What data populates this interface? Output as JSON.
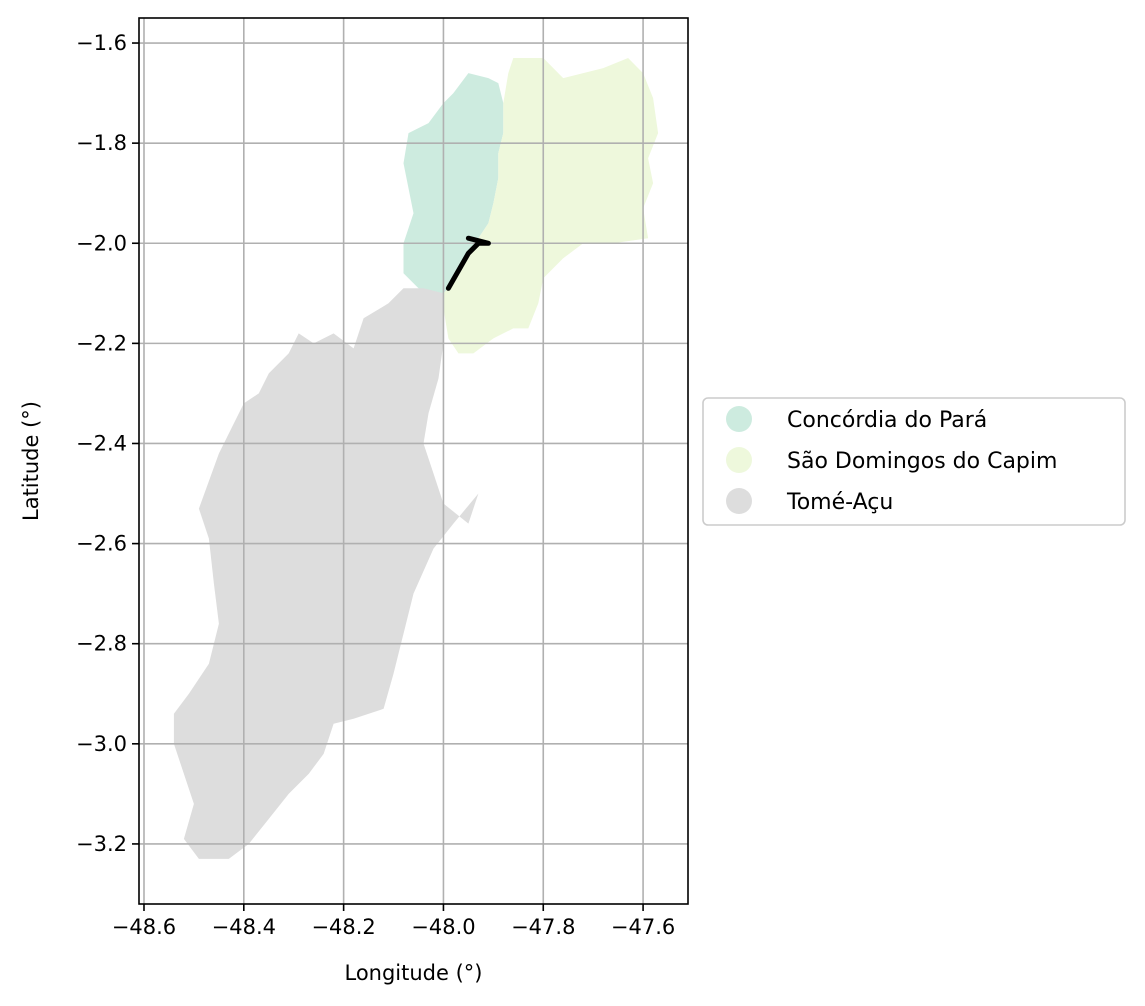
{
  "chart_data": {
    "type": "map",
    "xlabel": "Longitude (°)",
    "ylabel": "Latitude (°)",
    "xlim": [
      -48.61,
      -47.51
    ],
    "ylim": [
      -3.32,
      -1.55
    ],
    "xticks": [
      -48.6,
      -48.4,
      -48.2,
      -48.0,
      -47.8,
      -47.6
    ],
    "yticks": [
      -1.6,
      -1.8,
      -2.0,
      -2.2,
      -2.4,
      -2.6,
      -2.8,
      -3.0,
      -3.2
    ],
    "grid": true,
    "legend_position": "center-left outside plot",
    "legend": [
      {
        "label": "Concórdia do Pará",
        "color": "#cdebdf"
      },
      {
        "label": "São Domingos do Capim",
        "color": "#eef8dc"
      },
      {
        "label": "Tomé-Açu",
        "color": "#dddddd"
      }
    ],
    "regions": [
      {
        "name": "Concórdia do Pará",
        "color": "#cdebdf",
        "outline": [
          [
            -48.05,
            -2.09
          ],
          [
            -48.08,
            -2.06
          ],
          [
            -48.08,
            -2.0
          ],
          [
            -48.06,
            -1.94
          ],
          [
            -48.08,
            -1.84
          ],
          [
            -48.07,
            -1.78
          ],
          [
            -48.03,
            -1.76
          ],
          [
            -48.0,
            -1.72
          ],
          [
            -47.98,
            -1.7
          ],
          [
            -47.95,
            -1.66
          ],
          [
            -47.91,
            -1.67
          ],
          [
            -47.89,
            -1.68
          ],
          [
            -47.88,
            -1.72
          ],
          [
            -47.88,
            -1.78
          ],
          [
            -47.89,
            -1.82
          ],
          [
            -47.89,
            -1.87
          ],
          [
            -47.9,
            -1.92
          ],
          [
            -47.91,
            -1.96
          ],
          [
            -47.93,
            -1.99
          ],
          [
            -47.96,
            -2.03
          ],
          [
            -47.98,
            -2.08
          ],
          [
            -48.0,
            -2.1
          ],
          [
            -48.03,
            -2.1
          ]
        ]
      },
      {
        "name": "São Domingos do Capim",
        "color": "#eef8dc",
        "outline": [
          [
            -47.88,
            -1.72
          ],
          [
            -47.87,
            -1.66
          ],
          [
            -47.86,
            -1.63
          ],
          [
            -47.8,
            -1.63
          ],
          [
            -47.76,
            -1.67
          ],
          [
            -47.72,
            -1.66
          ],
          [
            -47.68,
            -1.65
          ],
          [
            -47.63,
            -1.63
          ],
          [
            -47.6,
            -1.66
          ],
          [
            -47.58,
            -1.71
          ],
          [
            -47.57,
            -1.78
          ],
          [
            -47.59,
            -1.83
          ],
          [
            -47.58,
            -1.88
          ],
          [
            -47.6,
            -1.93
          ],
          [
            -47.59,
            -1.99
          ],
          [
            -47.66,
            -2.0
          ],
          [
            -47.72,
            -2.0
          ],
          [
            -47.76,
            -2.03
          ],
          [
            -47.8,
            -2.07
          ],
          [
            -47.81,
            -2.12
          ],
          [
            -47.83,
            -2.17
          ],
          [
            -47.86,
            -2.17
          ],
          [
            -47.9,
            -2.19
          ],
          [
            -47.94,
            -2.22
          ],
          [
            -47.97,
            -2.22
          ],
          [
            -47.99,
            -2.19
          ],
          [
            -48.0,
            -2.13
          ],
          [
            -48.0,
            -2.1
          ],
          [
            -47.98,
            -2.08
          ],
          [
            -47.96,
            -2.03
          ],
          [
            -47.93,
            -1.99
          ],
          [
            -47.91,
            -1.96
          ],
          [
            -47.9,
            -1.92
          ],
          [
            -47.89,
            -1.87
          ],
          [
            -47.89,
            -1.82
          ],
          [
            -47.88,
            -1.78
          ]
        ]
      },
      {
        "name": "Tomé-Açu",
        "color": "#dddddd",
        "outline": [
          [
            -48.0,
            -2.1
          ],
          [
            -48.04,
            -2.09
          ],
          [
            -48.08,
            -2.09
          ],
          [
            -48.11,
            -2.12
          ],
          [
            -48.16,
            -2.15
          ],
          [
            -48.18,
            -2.21
          ],
          [
            -48.22,
            -2.18
          ],
          [
            -48.26,
            -2.2
          ],
          [
            -48.29,
            -2.18
          ],
          [
            -48.31,
            -2.22
          ],
          [
            -48.35,
            -2.26
          ],
          [
            -48.37,
            -2.3
          ],
          [
            -48.4,
            -2.32
          ],
          [
            -48.42,
            -2.36
          ],
          [
            -48.45,
            -2.42
          ],
          [
            -48.49,
            -2.53
          ],
          [
            -48.47,
            -2.59
          ],
          [
            -48.46,
            -2.68
          ],
          [
            -48.45,
            -2.76
          ],
          [
            -48.47,
            -2.84
          ],
          [
            -48.51,
            -2.9
          ],
          [
            -48.54,
            -2.94
          ],
          [
            -48.54,
            -3.0
          ],
          [
            -48.52,
            -3.06
          ],
          [
            -48.5,
            -3.12
          ],
          [
            -48.52,
            -3.19
          ],
          [
            -48.49,
            -3.23
          ],
          [
            -48.43,
            -3.23
          ],
          [
            -48.39,
            -3.2
          ],
          [
            -48.35,
            -3.15
          ],
          [
            -48.31,
            -3.1
          ],
          [
            -48.27,
            -3.06
          ],
          [
            -48.24,
            -3.02
          ],
          [
            -48.22,
            -2.96
          ],
          [
            -48.18,
            -2.95
          ],
          [
            -48.12,
            -2.93
          ],
          [
            -48.1,
            -2.86
          ],
          [
            -48.08,
            -2.78
          ],
          [
            -48.06,
            -2.7
          ],
          [
            -48.02,
            -2.61
          ],
          [
            -47.98,
            -2.56
          ],
          [
            -47.93,
            -2.5
          ],
          [
            -47.95,
            -2.56
          ],
          [
            -48.0,
            -2.52
          ],
          [
            -48.02,
            -2.46
          ],
          [
            -48.04,
            -2.4
          ],
          [
            -48.03,
            -2.34
          ],
          [
            -48.01,
            -2.27
          ],
          [
            -48.0,
            -2.2
          ],
          [
            -48.0,
            -2.14
          ]
        ]
      }
    ],
    "line_feature": {
      "color": "#000000",
      "points": [
        [
          -47.99,
          -2.09
        ],
        [
          -47.95,
          -2.02
        ],
        [
          -47.93,
          -2.0
        ],
        [
          -47.91,
          -2.0
        ],
        [
          -47.95,
          -1.99
        ]
      ]
    }
  }
}
